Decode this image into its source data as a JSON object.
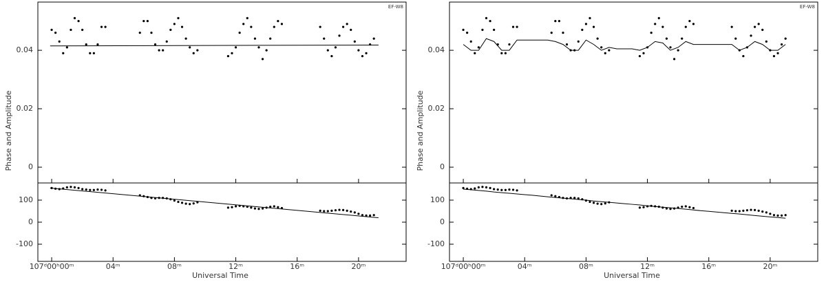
{
  "chart_data": [
    {
      "type": "scatter",
      "title": "EF-W8",
      "xlabel": "Universal Time",
      "ylabel": "Phase and Amplitude",
      "color": "#000000",
      "xlim": [
        -0.9,
        23.1
      ],
      "xticks": [
        {
          "value": 0,
          "label": "107ᵈ00ʰ00ᵐ"
        },
        {
          "value": 4,
          "label": "04ᵐ"
        },
        {
          "value": 8,
          "label": "08ᵐ"
        },
        {
          "value": 12,
          "label": "12ᵐ"
        },
        {
          "value": 16,
          "label": "16ᵐ"
        },
        {
          "value": 20,
          "label": "20ᵐ"
        }
      ],
      "x": [
        0,
        0.25,
        0.5,
        0.75,
        1,
        1.25,
        1.5,
        1.75,
        2,
        2.25,
        2.5,
        2.75,
        3,
        3.25,
        3.5,
        5.75,
        6,
        6.25,
        6.5,
        6.75,
        7,
        7.25,
        7.5,
        7.75,
        8,
        8.25,
        8.5,
        8.75,
        9,
        9.25,
        9.5,
        11.5,
        11.75,
        12,
        12.25,
        12.5,
        12.75,
        13,
        13.25,
        13.5,
        13.75,
        14,
        14.25,
        14.5,
        14.75,
        15,
        17.5,
        17.75,
        18,
        18.25,
        18.5,
        18.75,
        19,
        19.25,
        19.5,
        19.75,
        20,
        20.25,
        20.5,
        20.75,
        21
      ],
      "amplitude": {
        "ylim": [
          -0.0054,
          0.0565
        ],
        "yticks": [
          0,
          0.02,
          0.04
        ],
        "values": [
          0.047,
          0.046,
          0.043,
          0.039,
          0.041,
          0.047,
          0.051,
          0.05,
          0.047,
          0.042,
          0.039,
          0.039,
          0.042,
          0.048,
          0.048,
          0.046,
          0.05,
          0.05,
          0.046,
          0.042,
          0.04,
          0.04,
          0.043,
          0.047,
          0.049,
          0.051,
          0.048,
          0.044,
          0.041,
          0.039,
          0.04,
          0.038,
          0.039,
          0.041,
          0.046,
          0.049,
          0.051,
          0.048,
          0.044,
          0.041,
          0.037,
          0.04,
          0.044,
          0.048,
          0.05,
          0.049,
          0.048,
          0.044,
          0.04,
          0.038,
          0.041,
          0.045,
          0.048,
          0.049,
          0.047,
          0.043,
          0.04,
          0.038,
          0.039,
          0.042,
          0.044
        ],
        "model_x": [
          -0.1,
          21.3
        ],
        "model_values": [
          0.0415,
          0.0418
        ]
      },
      "phase": {
        "ylim": [
          -178,
          178
        ],
        "yticks": [
          -100,
          0,
          100
        ],
        "values": [
          155,
          152,
          150,
          153,
          158,
          160,
          158,
          155,
          150,
          148,
          146,
          146,
          148,
          147,
          144,
          122,
          118,
          114,
          110,
          108,
          110,
          110,
          108,
          104,
          98,
          92,
          88,
          84,
          82,
          85,
          90,
          66,
          68,
          72,
          74,
          72,
          70,
          66,
          62,
          60,
          62,
          66,
          70,
          72,
          68,
          64,
          52,
          50,
          50,
          52,
          54,
          56,
          55,
          52,
          48,
          44,
          38,
          32,
          30,
          30,
          32
        ],
        "model_x": [
          -0.1,
          21.3
        ],
        "model_values": [
          155,
          20
        ]
      }
    },
    {
      "type": "scatter",
      "title": "EF-W8",
      "xlabel": "Universal Time",
      "ylabel": "Phase and Amplitude",
      "color": "#000000",
      "xlim": [
        -0.9,
        23.1
      ],
      "xticks": [
        {
          "value": 0,
          "label": "107ᵈ00ʰ00ᵐ"
        },
        {
          "value": 4,
          "label": "04ᵐ"
        },
        {
          "value": 8,
          "label": "08ᵐ"
        },
        {
          "value": 12,
          "label": "12ᵐ"
        },
        {
          "value": 16,
          "label": "16ᵐ"
        },
        {
          "value": 20,
          "label": "20ᵐ"
        }
      ],
      "x": [
        0,
        0.25,
        0.5,
        0.75,
        1,
        1.25,
        1.5,
        1.75,
        2,
        2.25,
        2.5,
        2.75,
        3,
        3.25,
        3.5,
        5.75,
        6,
        6.25,
        6.5,
        6.75,
        7,
        7.25,
        7.5,
        7.75,
        8,
        8.25,
        8.5,
        8.75,
        9,
        9.25,
        9.5,
        11.5,
        11.75,
        12,
        12.25,
        12.5,
        12.75,
        13,
        13.25,
        13.5,
        13.75,
        14,
        14.25,
        14.5,
        14.75,
        15,
        17.5,
        17.75,
        18,
        18.25,
        18.5,
        18.75,
        19,
        19.25,
        19.5,
        19.75,
        20,
        20.25,
        20.5,
        20.75,
        21
      ],
      "amplitude": {
        "ylim": [
          -0.0054,
          0.0565
        ],
        "yticks": [
          0,
          0.02,
          0.04
        ],
        "values": [
          0.047,
          0.046,
          0.043,
          0.039,
          0.041,
          0.047,
          0.051,
          0.05,
          0.047,
          0.042,
          0.039,
          0.039,
          0.042,
          0.048,
          0.048,
          0.046,
          0.05,
          0.05,
          0.046,
          0.042,
          0.04,
          0.04,
          0.043,
          0.047,
          0.049,
          0.051,
          0.048,
          0.044,
          0.041,
          0.039,
          0.04,
          0.038,
          0.039,
          0.041,
          0.046,
          0.049,
          0.051,
          0.048,
          0.044,
          0.041,
          0.037,
          0.04,
          0.044,
          0.048,
          0.05,
          0.049,
          0.048,
          0.044,
          0.04,
          0.038,
          0.041,
          0.045,
          0.048,
          0.049,
          0.047,
          0.043,
          0.04,
          0.038,
          0.039,
          0.042,
          0.044
        ],
        "model_x": [
          0,
          0.5,
          1,
          1.5,
          2,
          2.5,
          3,
          3.5,
          4,
          4.5,
          5,
          5.5,
          6,
          6.5,
          7,
          7.5,
          8,
          8.5,
          9,
          9.5,
          10,
          10.5,
          11,
          11.5,
          12,
          12.5,
          13,
          13.5,
          14,
          14.5,
          15,
          15.5,
          16,
          16.5,
          17,
          17.5,
          18,
          18.5,
          19,
          19.5,
          20,
          20.5,
          21
        ],
        "model_values": [
          0.042,
          0.04,
          0.04,
          0.044,
          0.043,
          0.04,
          0.04,
          0.0435,
          0.0435,
          0.0435,
          0.0435,
          0.0435,
          0.043,
          0.042,
          0.04,
          0.04,
          0.0435,
          0.042,
          0.04,
          0.041,
          0.0405,
          0.0405,
          0.0405,
          0.04,
          0.041,
          0.043,
          0.0425,
          0.04,
          0.041,
          0.043,
          0.042,
          0.042,
          0.042,
          0.042,
          0.042,
          0.042,
          0.04,
          0.041,
          0.043,
          0.042,
          0.04,
          0.04,
          0.042
        ]
      },
      "phase": {
        "ylim": [
          -178,
          178
        ],
        "yticks": [
          -100,
          0,
          100
        ],
        "values": [
          155,
          152,
          150,
          153,
          158,
          160,
          158,
          155,
          150,
          148,
          146,
          146,
          148,
          147,
          144,
          122,
          118,
          114,
          110,
          108,
          110,
          110,
          108,
          104,
          98,
          92,
          88,
          84,
          82,
          85,
          90,
          66,
          68,
          72,
          74,
          72,
          70,
          66,
          62,
          60,
          62,
          66,
          70,
          72,
          68,
          64,
          52,
          50,
          50,
          52,
          54,
          56,
          55,
          52,
          48,
          44,
          38,
          32,
          30,
          30,
          32
        ],
        "model_x": [
          0,
          0.5,
          1,
          1.5,
          2,
          2.5,
          3,
          3.5,
          4,
          4.5,
          5,
          5.5,
          6,
          6.5,
          7,
          7.5,
          8,
          8.5,
          9,
          9.5,
          10,
          10.5,
          11,
          11.5,
          12,
          12.5,
          13,
          13.5,
          14,
          14.5,
          15,
          15.5,
          16,
          16.5,
          17,
          17.5,
          18,
          18.5,
          19,
          19.5,
          20,
          20.5,
          21
        ],
        "model_values": [
          150,
          147,
          144,
          141,
          137,
          134,
          131,
          128,
          125,
          122,
          118.5,
          115,
          112,
          109,
          106,
          103,
          100,
          96,
          93,
          90,
          87,
          84,
          81,
          78,
          74,
          71,
          68,
          65,
          62,
          59,
          55.5,
          52,
          49,
          46,
          43,
          40,
          37,
          33.5,
          30,
          27,
          24,
          21,
          18
        ]
      }
    }
  ]
}
